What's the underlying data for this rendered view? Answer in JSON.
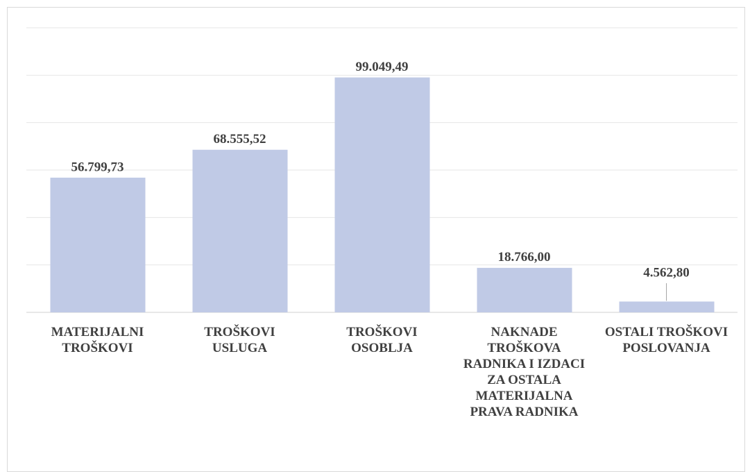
{
  "chart_data": {
    "type": "bar",
    "categories": [
      "MATERIJALNI TROŠKOVI",
      "TROŠKOVI USLUGA",
      "TROŠKOVI OSOBLJA",
      "NAKNADE TROŠKOVA RADNIKA I IZDACI ZA OSTALA MATERIJALNA PRAVA RADNIKA",
      "OSTALI TROŠKOVI POSLOVANJA"
    ],
    "values": [
      56799.73,
      68555.52,
      99049.49,
      18766.0,
      4562.8
    ],
    "value_labels": [
      "56.799,73",
      "68.555,52",
      "99.049,49",
      "18.766,00",
      "4.562,80"
    ],
    "color": "#c0cae6",
    "ylim": [
      0,
      120000
    ],
    "yticks": [
      0,
      20000,
      40000,
      60000,
      80000,
      100000,
      120000
    ],
    "grid": true
  }
}
